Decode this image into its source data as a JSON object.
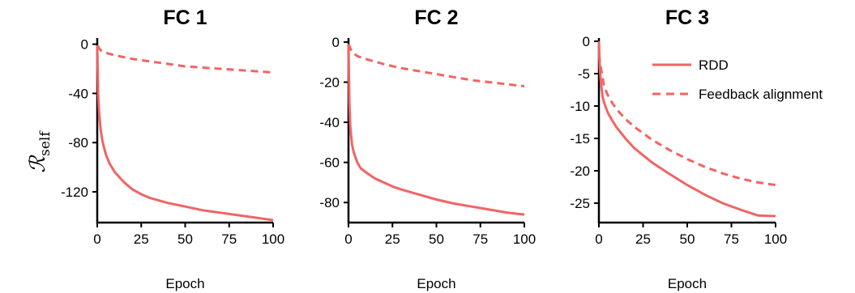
{
  "figure": {
    "ylabel_main": "ℛ",
    "ylabel_sub": "self",
    "line_color": "#f16464"
  },
  "legend": {
    "placement": "upper-right of FC 3",
    "items": [
      {
        "label": "RDD",
        "style": "solid"
      },
      {
        "label": "Feedback alignment",
        "style": "dashed"
      }
    ]
  },
  "chart_data": [
    {
      "type": "line",
      "title": "FC 1",
      "xlabel": "Epoch",
      "xlim": [
        0,
        100
      ],
      "ylim": [
        -145,
        5
      ],
      "xticks": [
        0,
        25,
        50,
        75,
        100
      ],
      "yticks": [
        0,
        -40,
        -80,
        -120
      ],
      "grid": false,
      "series": [
        {
          "name": "RDD",
          "style": "solid",
          "x": [
            0,
            0.5,
            1,
            2,
            3,
            5,
            7,
            10,
            15,
            20,
            25,
            30,
            40,
            50,
            60,
            70,
            80,
            90,
            100
          ],
          "y": [
            -1,
            -40,
            -55,
            -70,
            -79,
            -90,
            -97,
            -104,
            -112,
            -118,
            -122,
            -125,
            -129,
            -132,
            -135,
            -137,
            -139,
            -141,
            -143
          ]
        },
        {
          "name": "Feedback alignment",
          "style": "dashed",
          "x": [
            0,
            2,
            5,
            10,
            20,
            30,
            40,
            50,
            60,
            70,
            80,
            90,
            100
          ],
          "y": [
            -1,
            -5,
            -7,
            -9,
            -12,
            -14,
            -16,
            -18,
            -19,
            -20,
            -21,
            -22,
            -23
          ]
        }
      ]
    },
    {
      "type": "line",
      "title": "FC 2",
      "xlabel": "Epoch",
      "xlim": [
        0,
        100
      ],
      "ylim": [
        -90,
        2
      ],
      "xticks": [
        0,
        25,
        50,
        75,
        100
      ],
      "yticks": [
        0,
        -20,
        -40,
        -60,
        -80
      ],
      "grid": false,
      "series": [
        {
          "name": "RDD",
          "style": "solid",
          "x": [
            0,
            0.5,
            1,
            2,
            3,
            5,
            7,
            10,
            15,
            20,
            25,
            30,
            40,
            50,
            60,
            70,
            80,
            90,
            100
          ],
          "y": [
            -1,
            -30,
            -42,
            -51,
            -55,
            -60,
            -63,
            -65,
            -68,
            -70,
            -72,
            -73.5,
            -76,
            -78.5,
            -80.5,
            -82,
            -83.5,
            -85,
            -86
          ]
        },
        {
          "name": "Feedback alignment",
          "style": "dashed",
          "x": [
            0,
            2,
            5,
            10,
            20,
            30,
            40,
            50,
            60,
            70,
            80,
            90,
            100
          ],
          "y": [
            -1,
            -5,
            -7,
            -8.5,
            -11,
            -13,
            -14.5,
            -16,
            -17.5,
            -19,
            -20,
            -21,
            -22
          ]
        }
      ]
    },
    {
      "type": "line",
      "title": "FC 3",
      "xlabel": "Epoch",
      "xlim": [
        0,
        100
      ],
      "ylim": [
        -28,
        0.5
      ],
      "xticks": [
        0,
        25,
        50,
        75,
        100
      ],
      "yticks": [
        0,
        -5,
        -10,
        -15,
        -20,
        -25
      ],
      "grid": false,
      "series": [
        {
          "name": "RDD",
          "style": "solid",
          "x": [
            0,
            0.5,
            1,
            2,
            3,
            5,
            7,
            10,
            15,
            20,
            25,
            30,
            40,
            50,
            60,
            70,
            80,
            90,
            100
          ],
          "y": [
            0,
            -4,
            -6,
            -8.5,
            -9.5,
            -11,
            -12,
            -13.3,
            -15,
            -16.5,
            -17.6,
            -18.7,
            -20.5,
            -22.2,
            -23.7,
            -25,
            -26,
            -26.9,
            -27
          ]
        },
        {
          "name": "Feedback alignment",
          "style": "dashed",
          "x": [
            0,
            1,
            2,
            3,
            5,
            7,
            10,
            15,
            20,
            25,
            30,
            40,
            50,
            60,
            70,
            80,
            90,
            100
          ],
          "y": [
            -2,
            -4,
            -5.5,
            -7,
            -8.3,
            -9.3,
            -10.5,
            -12,
            -13.2,
            -14.2,
            -15.2,
            -16.8,
            -18.2,
            -19.4,
            -20.4,
            -21.2,
            -21.8,
            -22.2
          ]
        }
      ]
    }
  ]
}
